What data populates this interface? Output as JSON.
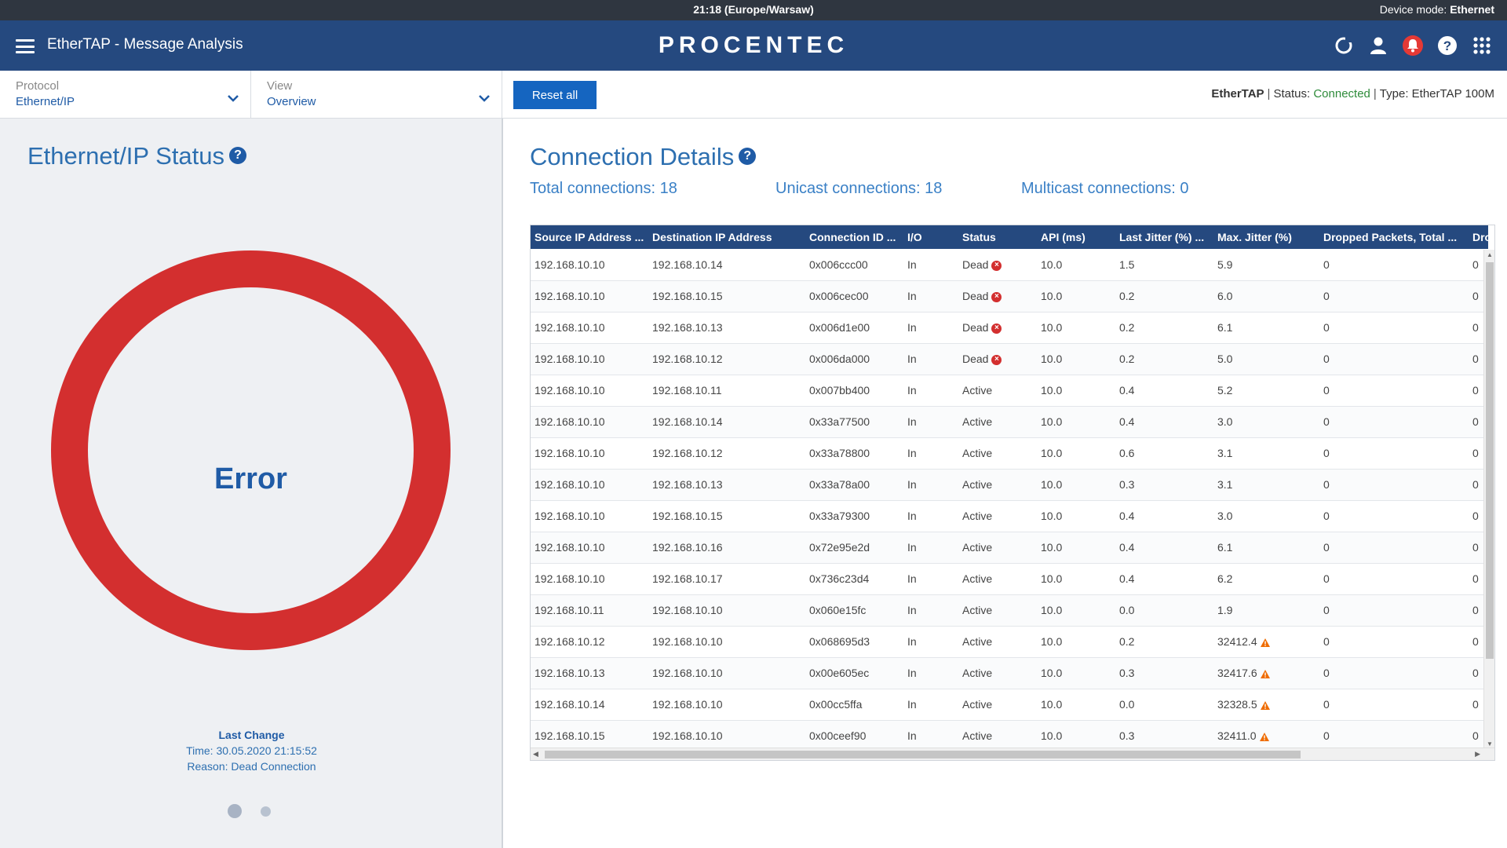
{
  "system_bar": {
    "clock": "21:18 (Europe/Warsaw)",
    "device_mode_label": "Device mode:",
    "device_mode_value": "Ethernet"
  },
  "header": {
    "app_title": "EtherTAP - Message Analysis",
    "brand": "PROCENTEC",
    "icons": [
      "refresh-icon",
      "user-icon",
      "notification-bell-icon",
      "help-icon",
      "apps-grid-icon"
    ],
    "alert_color": "#e53935"
  },
  "filters": {
    "protocol": {
      "label": "Protocol",
      "value": "Ethernet/IP"
    },
    "view": {
      "label": "View",
      "value": "Overview"
    },
    "reset_label": "Reset all"
  },
  "device_status": {
    "name": "EtherTAP",
    "status_label": "Status:",
    "status_value": "Connected",
    "type_label": "Type:",
    "type_value": "EtherTAP 100M"
  },
  "left_panel": {
    "title": "Ethernet/IP Status",
    "ring_state": "Error",
    "ring_color": "#d32f2f",
    "last_change_heading": "Last Change",
    "last_change_time": "Time: 30.05.2020 21:15:52",
    "last_change_reason": "Reason: Dead Connection",
    "carousel_pages": 2,
    "carousel_active": 1
  },
  "right_panel": {
    "title": "Connection Details",
    "total": "Total connections: 18",
    "unicast": "Unicast connections: 18",
    "multicast": "Multicast connections: 0"
  },
  "table": {
    "columns": [
      "Source IP Address ...",
      "Destination IP Address",
      "Connection ID ...",
      "I/O",
      "Status",
      "API (ms)",
      "Last Jitter (%) ...",
      "Max. Jitter (%)",
      "Dropped Packets, Total ...",
      "Dro"
    ],
    "rows": [
      {
        "src": "192.168.10.10",
        "dst": "192.168.10.14",
        "id": "0x006ccc00",
        "io": "In",
        "status": "Dead",
        "dead": true,
        "api": "10.0",
        "last": "1.5",
        "max": "5.9",
        "warn": false,
        "dropped": "0",
        "dro": "0"
      },
      {
        "src": "192.168.10.10",
        "dst": "192.168.10.15",
        "id": "0x006cec00",
        "io": "In",
        "status": "Dead",
        "dead": true,
        "api": "10.0",
        "last": "0.2",
        "max": "6.0",
        "warn": false,
        "dropped": "0",
        "dro": "0"
      },
      {
        "src": "192.168.10.10",
        "dst": "192.168.10.13",
        "id": "0x006d1e00",
        "io": "In",
        "status": "Dead",
        "dead": true,
        "api": "10.0",
        "last": "0.2",
        "max": "6.1",
        "warn": false,
        "dropped": "0",
        "dro": "0"
      },
      {
        "src": "192.168.10.10",
        "dst": "192.168.10.12",
        "id": "0x006da000",
        "io": "In",
        "status": "Dead",
        "dead": true,
        "api": "10.0",
        "last": "0.2",
        "max": "5.0",
        "warn": false,
        "dropped": "0",
        "dro": "0"
      },
      {
        "src": "192.168.10.10",
        "dst": "192.168.10.11",
        "id": "0x007bb400",
        "io": "In",
        "status": "Active",
        "dead": false,
        "api": "10.0",
        "last": "0.4",
        "max": "5.2",
        "warn": false,
        "dropped": "0",
        "dro": "0"
      },
      {
        "src": "192.168.10.10",
        "dst": "192.168.10.14",
        "id": "0x33a77500",
        "io": "In",
        "status": "Active",
        "dead": false,
        "api": "10.0",
        "last": "0.4",
        "max": "3.0",
        "warn": false,
        "dropped": "0",
        "dro": "0"
      },
      {
        "src": "192.168.10.10",
        "dst": "192.168.10.12",
        "id": "0x33a78800",
        "io": "In",
        "status": "Active",
        "dead": false,
        "api": "10.0",
        "last": "0.6",
        "max": "3.1",
        "warn": false,
        "dropped": "0",
        "dro": "0"
      },
      {
        "src": "192.168.10.10",
        "dst": "192.168.10.13",
        "id": "0x33a78a00",
        "io": "In",
        "status": "Active",
        "dead": false,
        "api": "10.0",
        "last": "0.3",
        "max": "3.1",
        "warn": false,
        "dropped": "0",
        "dro": "0"
      },
      {
        "src": "192.168.10.10",
        "dst": "192.168.10.15",
        "id": "0x33a79300",
        "io": "In",
        "status": "Active",
        "dead": false,
        "api": "10.0",
        "last": "0.4",
        "max": "3.0",
        "warn": false,
        "dropped": "0",
        "dro": "0"
      },
      {
        "src": "192.168.10.10",
        "dst": "192.168.10.16",
        "id": "0x72e95e2d",
        "io": "In",
        "status": "Active",
        "dead": false,
        "api": "10.0",
        "last": "0.4",
        "max": "6.1",
        "warn": false,
        "dropped": "0",
        "dro": "0"
      },
      {
        "src": "192.168.10.10",
        "dst": "192.168.10.17",
        "id": "0x736c23d4",
        "io": "In",
        "status": "Active",
        "dead": false,
        "api": "10.0",
        "last": "0.4",
        "max": "6.2",
        "warn": false,
        "dropped": "0",
        "dro": "0"
      },
      {
        "src": "192.168.10.11",
        "dst": "192.168.10.10",
        "id": "0x060e15fc",
        "io": "In",
        "status": "Active",
        "dead": false,
        "api": "10.0",
        "last": "0.0",
        "max": "1.9",
        "warn": false,
        "dropped": "0",
        "dro": "0"
      },
      {
        "src": "192.168.10.12",
        "dst": "192.168.10.10",
        "id": "0x068695d3",
        "io": "In",
        "status": "Active",
        "dead": false,
        "api": "10.0",
        "last": "0.2",
        "max": "32412.4",
        "warn": true,
        "dropped": "0",
        "dro": "0"
      },
      {
        "src": "192.168.10.13",
        "dst": "192.168.10.10",
        "id": "0x00e605ec",
        "io": "In",
        "status": "Active",
        "dead": false,
        "api": "10.0",
        "last": "0.3",
        "max": "32417.6",
        "warn": true,
        "dropped": "0",
        "dro": "0"
      },
      {
        "src": "192.168.10.14",
        "dst": "192.168.10.10",
        "id": "0x00cc5ffa",
        "io": "In",
        "status": "Active",
        "dead": false,
        "api": "10.0",
        "last": "0.0",
        "max": "32328.5",
        "warn": true,
        "dropped": "0",
        "dro": "0"
      },
      {
        "src": "192.168.10.15",
        "dst": "192.168.10.10",
        "id": "0x00ceef90",
        "io": "In",
        "status": "Active",
        "dead": false,
        "api": "10.0",
        "last": "0.3",
        "max": "32411.0",
        "warn": true,
        "dropped": "0",
        "dro": "0"
      }
    ]
  }
}
